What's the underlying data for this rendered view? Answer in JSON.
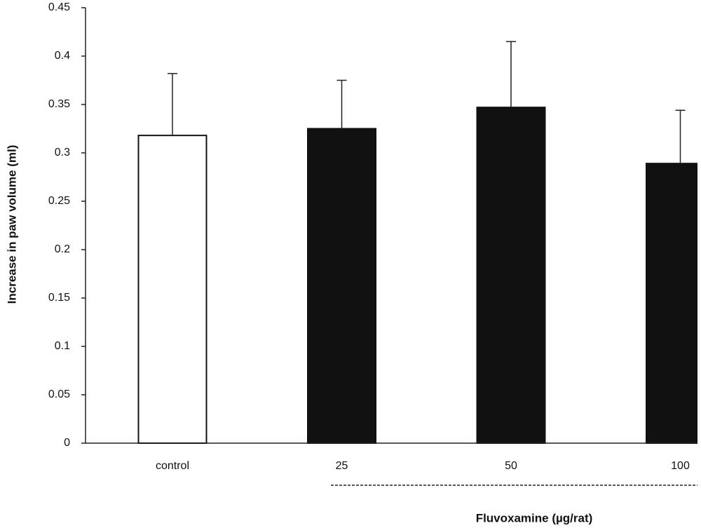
{
  "chart_data": {
    "type": "bar",
    "y_label": "Increase in paw volume (ml)",
    "x_label": "Fluvoxamine (µg/rat)",
    "categories": [
      "control",
      "25",
      "50",
      "100"
    ],
    "values": [
      0.318,
      0.325,
      0.347,
      0.289
    ],
    "errors": [
      0.064,
      0.05,
      0.068,
      0.055
    ],
    "colors": [
      "#ffffff",
      "#111111",
      "#111111",
      "#111111"
    ],
    "ylim": [
      0,
      0.45
    ],
    "yticks": [
      0,
      0.05,
      0.1,
      0.15,
      0.2,
      0.25,
      0.3,
      0.35,
      0.4,
      0.45
    ]
  }
}
